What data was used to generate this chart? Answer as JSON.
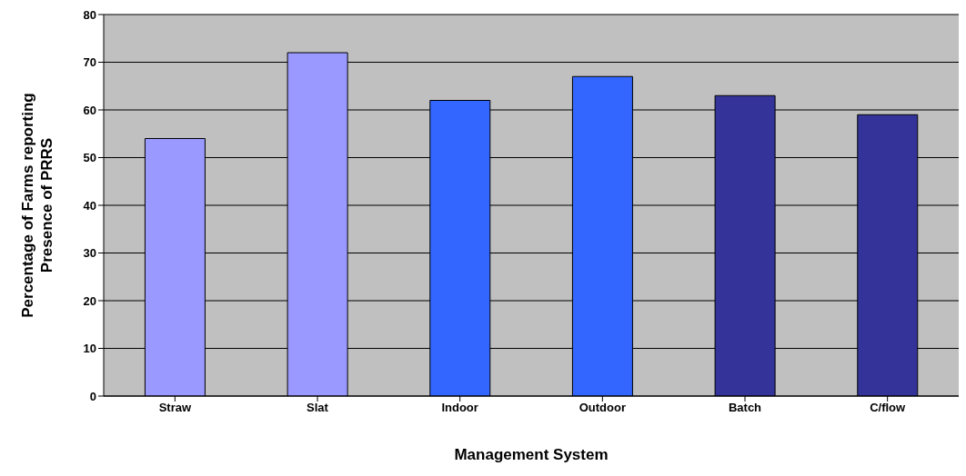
{
  "chart_data": {
    "type": "bar",
    "xlabel": "Management System",
    "ylabel": "Percentage of Farms reporting Presence of PRRS",
    "categories": [
      "Straw",
      "Slat",
      "Indoor",
      "Outdoor",
      "Batch",
      "C/flow"
    ],
    "values": [
      54,
      72,
      62,
      67,
      63,
      59
    ],
    "colors": [
      "#9999ff",
      "#9999ff",
      "#3366ff",
      "#3366ff",
      "#333399",
      "#333399"
    ],
    "ylim": [
      0,
      80
    ],
    "yticks": [
      0,
      10,
      20,
      30,
      40,
      50,
      60,
      70,
      80
    ],
    "grid": "y"
  }
}
